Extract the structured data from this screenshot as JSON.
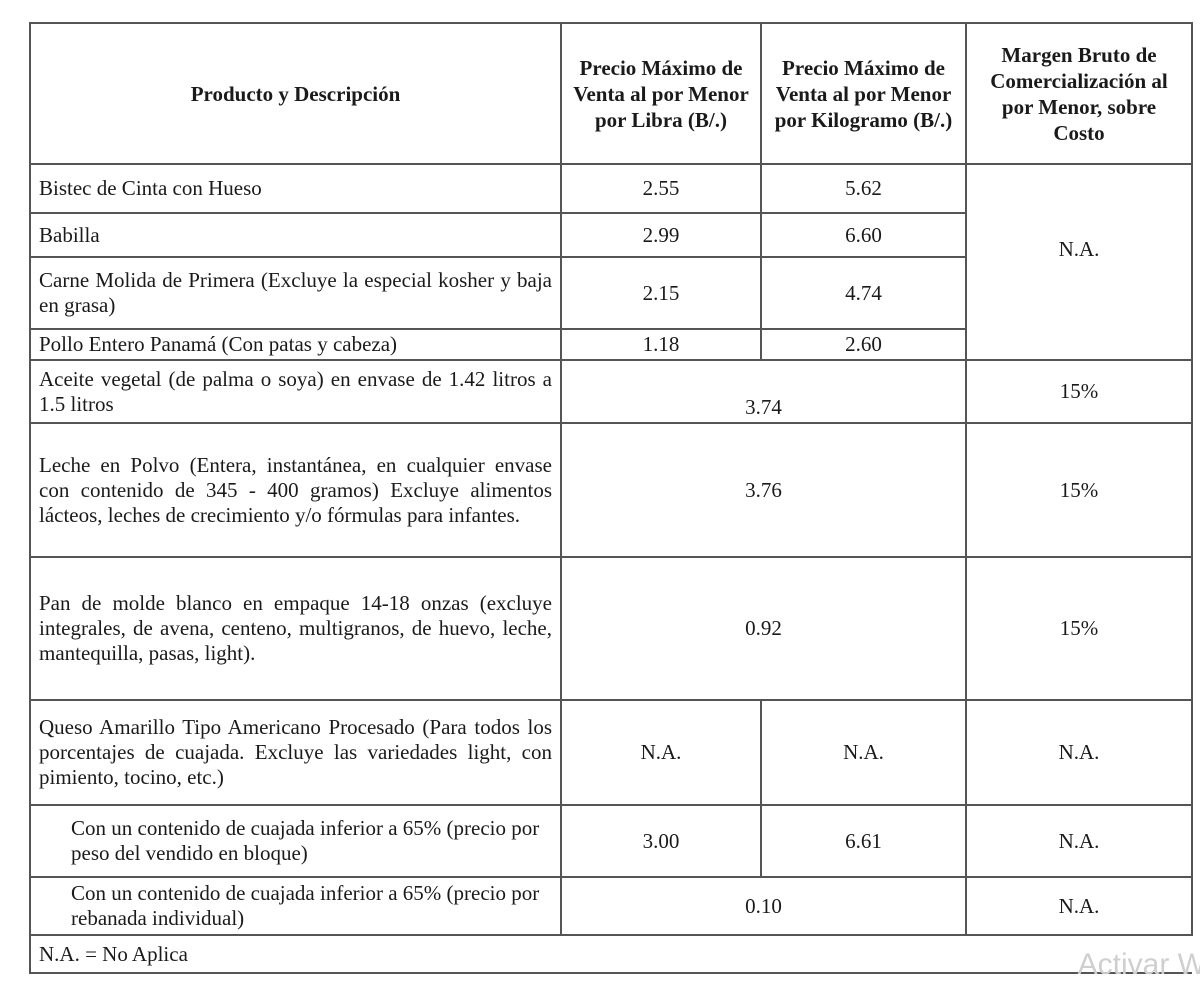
{
  "headers": {
    "product": "Producto y Descripción",
    "price_lb": "Precio Máximo de Venta al por Menor por Libra (B/.)",
    "price_kg": "Precio Máximo de Venta al por Menor por Kilogramo (B/.)",
    "margin": "Margen Bruto de Comercialización al por Menor, sobre Costo"
  },
  "meat": {
    "margin": "N.A.",
    "rows": [
      {
        "product": "Bistec de Cinta con Hueso",
        "lb": "2.55",
        "kg": "5.62"
      },
      {
        "product": "Babilla",
        "lb": "2.99",
        "kg": "6.60"
      },
      {
        "product": "Carne Molida de Primera (Excluye la especial kosher y baja en grasa)",
        "lb": "2.15",
        "kg": "4.74"
      },
      {
        "product": "Pollo Entero Panamá (Con patas y cabeza)",
        "lb": "1.18",
        "kg": "2.60"
      }
    ]
  },
  "merged": [
    {
      "product": "Aceite vegetal (de palma o soya) en envase de 1.42 litros a 1.5 litros",
      "price": "3.74",
      "margin": "15%"
    },
    {
      "product": "Leche en Polvo (Entera, instantánea, en cualquier envase con contenido de 345 - 400 gramos) Excluye alimentos lácteos, leches de crecimiento y/o fórmulas para infantes.",
      "price": "3.76",
      "margin": "15%"
    },
    {
      "product": "Pan de molde blanco en empaque 14-18 onzas (excluye integrales, de avena, centeno, multigranos, de huevo, leche, mantequilla, pasas, light).",
      "price": "0.92",
      "margin": "15%"
    }
  ],
  "cheese": {
    "main": {
      "product": "Queso Amarillo Tipo Americano Procesado (Para todos los porcentajes de cuajada. Excluye las variedades light, con pimiento, tocino, etc.)",
      "lb": "N.A.",
      "kg": "N.A.",
      "margin": "N.A."
    },
    "block": {
      "product": "Con un contenido de cuajada inferior a 65% (precio por peso del vendido en bloque)",
      "lb": "3.00",
      "kg": "6.61",
      "margin": "N.A."
    },
    "slice": {
      "product": "Con un contenido de cuajada inferior a 65% (precio por rebanada individual)",
      "price": "0.10",
      "margin": "N.A."
    }
  },
  "note": "N.A. = No Aplica",
  "watermark": "Activar W"
}
